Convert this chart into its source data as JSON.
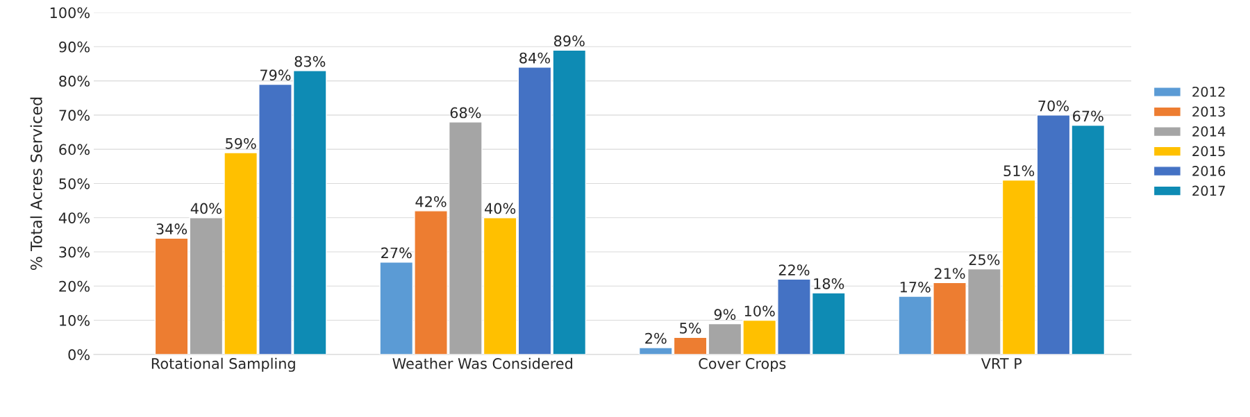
{
  "chart_data": {
    "type": "bar",
    "ylabel": "% Total Acres Serviced",
    "categories": [
      "Rotational Sampling",
      "Weather Was Considered",
      "Cover Crops",
      "VRT P"
    ],
    "series": [
      {
        "name": "2012",
        "color": "#5b9bd5",
        "values": [
          null,
          27,
          2,
          17
        ],
        "value_labels": [
          null,
          "27%",
          "2%",
          "17%"
        ]
      },
      {
        "name": "2013",
        "color": "#ed7d31",
        "values": [
          34,
          42,
          5,
          21
        ],
        "value_labels": [
          "34%",
          "42%",
          "5%",
          "21%"
        ]
      },
      {
        "name": "2014",
        "color": "#a5a5a5",
        "values": [
          40,
          68,
          9,
          25
        ],
        "value_labels": [
          "40%",
          "68%",
          "9%",
          "25%"
        ]
      },
      {
        "name": "2015",
        "color": "#ffc000",
        "values": [
          59,
          40,
          10,
          51
        ],
        "value_labels": [
          "59%",
          "40%",
          "10%",
          "51%"
        ]
      },
      {
        "name": "2016",
        "color": "#4472c4",
        "values": [
          79,
          84,
          22,
          70
        ],
        "value_labels": [
          "79%",
          "84%",
          "22%",
          "70%"
        ]
      },
      {
        "name": "2017",
        "color": "#0e8bb4",
        "values": [
          83,
          89,
          18,
          67
        ],
        "value_labels": [
          "83%",
          "89%",
          "18%",
          "67%"
        ]
      }
    ],
    "ylim": [
      0,
      100
    ],
    "yticks": [
      {
        "value": 0,
        "label": "0%"
      },
      {
        "value": 10,
        "label": "10%"
      },
      {
        "value": 20,
        "label": "20%"
      },
      {
        "value": 30,
        "label": "30%"
      },
      {
        "value": 40,
        "label": "40%"
      },
      {
        "value": 50,
        "label": "50%"
      },
      {
        "value": 60,
        "label": "60%"
      },
      {
        "value": 70,
        "label": "70%"
      },
      {
        "value": 80,
        "label": "80%"
      },
      {
        "value": 90,
        "label": "90%"
      },
      {
        "value": 100,
        "label": "100%"
      }
    ],
    "grid": "y",
    "legend": "right"
  }
}
